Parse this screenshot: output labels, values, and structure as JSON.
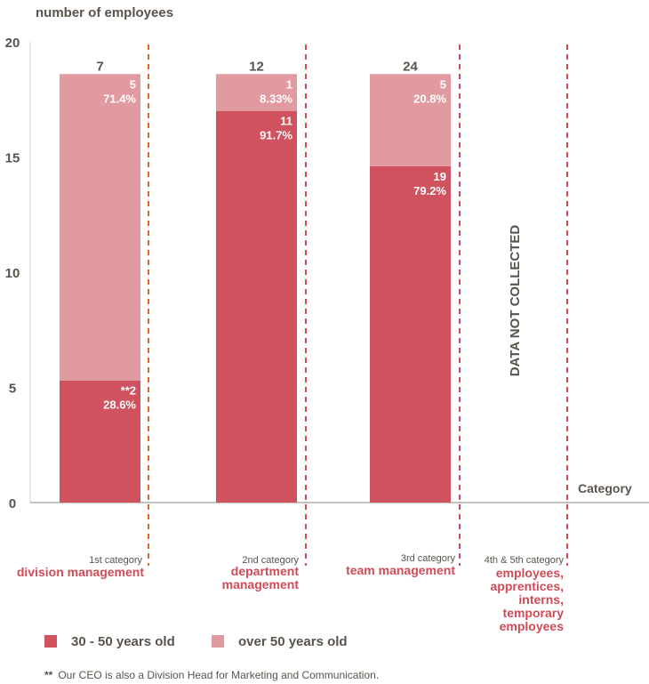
{
  "chart_data": {
    "type": "bar",
    "stacked": true,
    "ylabel": "number of employees",
    "xlabel": "Category",
    "ylim": [
      0,
      20
    ],
    "yticks": [
      "0",
      "5",
      "10",
      "15",
      "20"
    ],
    "categories": [
      {
        "small": "1st category",
        "main": "division management",
        "total": "7"
      },
      {
        "small": "2nd category",
        "main": "department management",
        "total": "12"
      },
      {
        "small": "3rd category",
        "main": "team management",
        "total": "24"
      },
      {
        "small": "4th & 5th category",
        "main": "employees, apprentices, interns, temporary employees",
        "total": ""
      }
    ],
    "series": [
      {
        "name": "30 - 50 years old",
        "color": "#d0525e",
        "values": [
          5.3,
          17.0,
          14.6,
          null
        ],
        "labels": [
          [
            "**2",
            "28.6%"
          ],
          [
            "11",
            "91.7%"
          ],
          [
            "19",
            "79.2%"
          ],
          null
        ]
      },
      {
        "name": "over 50 years old",
        "color": "#e29aa1",
        "values": [
          13.3,
          1.6,
          4.0,
          null
        ],
        "labels": [
          [
            "5",
            "71.4%"
          ],
          [
            "1",
            "8.33%"
          ],
          [
            "5",
            "20.8%"
          ],
          null
        ]
      }
    ],
    "annotation": "DATA NOT COLLECTED",
    "divider_colors": [
      "#e0682e",
      "#d14b57",
      "#d14b57",
      "#d14b57"
    ]
  },
  "footnote": {
    "marker": "**",
    "text": "Our CEO is also a Division Head for Marketing and Communication."
  }
}
